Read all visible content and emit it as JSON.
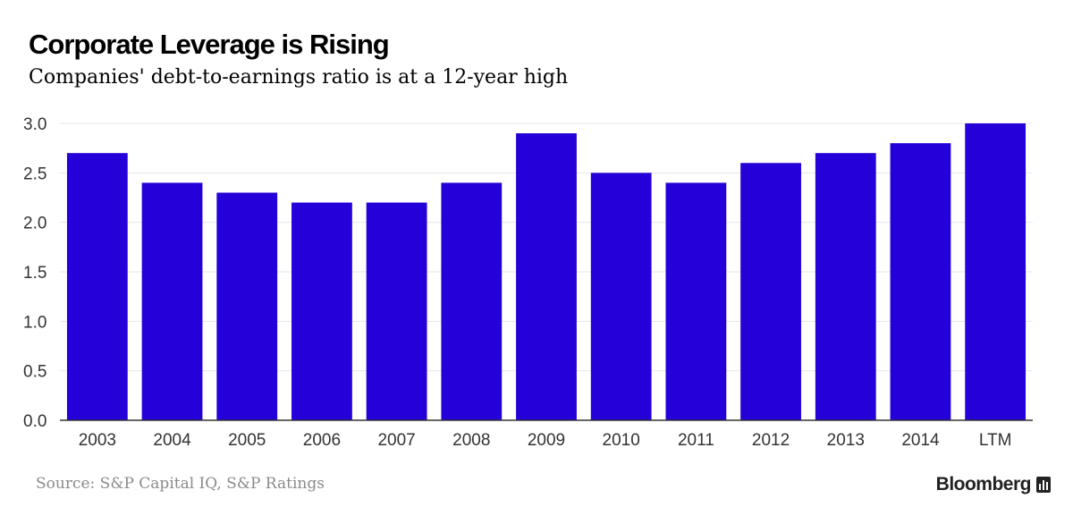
{
  "header": {
    "title": "Corporate Leverage is Rising",
    "subtitle": "Companies' debt-to-earnings ratio is at a 12-year high"
  },
  "footer": {
    "source": "Source: S&P Capital IQ, S&P Ratings",
    "brand": "Bloomberg",
    "brand_icon": "bloomberg-terminal-icon"
  },
  "colors": {
    "bar": "#2600D9",
    "grid": "#e6e6e6",
    "axis": "#333333"
  },
  "chart_data": {
    "type": "bar",
    "title": "Corporate Leverage is Rising",
    "subtitle": "Companies' debt-to-earnings ratio is at a 12-year high",
    "xlabel": "",
    "ylabel": "",
    "categories": [
      "2003",
      "2004",
      "2005",
      "2006",
      "2007",
      "2008",
      "2009",
      "2010",
      "2011",
      "2012",
      "2013",
      "2014",
      "LTM"
    ],
    "values": [
      2.7,
      2.4,
      2.3,
      2.2,
      2.2,
      2.4,
      2.9,
      2.5,
      2.4,
      2.6,
      2.7,
      2.8,
      3.0
    ],
    "ylim": [
      0,
      3.0
    ],
    "yticks": [
      "0.0",
      "0.5",
      "1.0",
      "1.5",
      "2.0",
      "2.5",
      "3.0"
    ],
    "grid": true,
    "legend": "none"
  }
}
